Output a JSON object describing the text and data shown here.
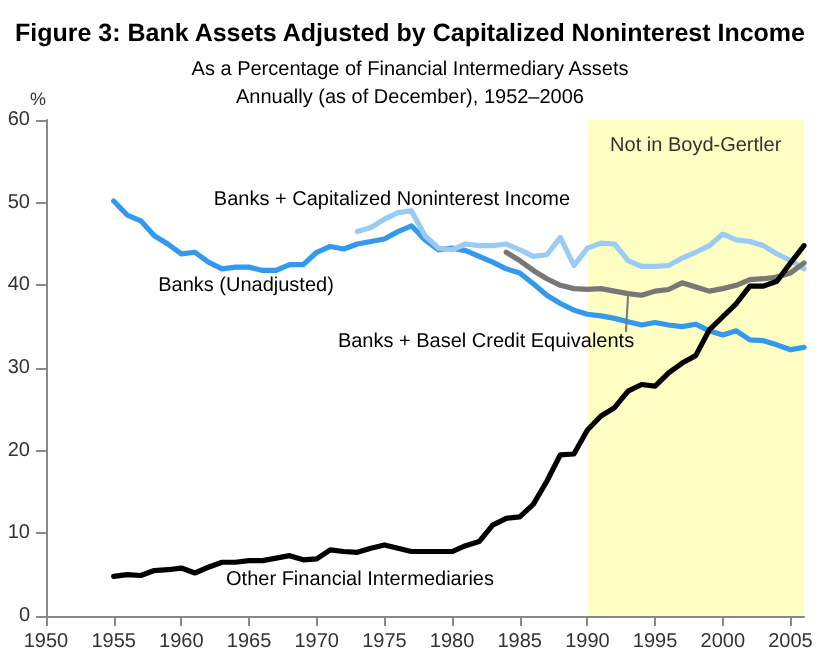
{
  "chart_data": {
    "type": "line",
    "title": "Figure 3: Bank Assets Adjusted by Capitalized Noninterest Income",
    "subtitle": "As a Percentage of Financial Intermediary Assets\nAnnually (as of December), 1952–2006",
    "ylabel": "%",
    "xlim": [
      1950,
      2006
    ],
    "xticks": [
      1950,
      1955,
      1960,
      1965,
      1970,
      1975,
      1980,
      1985,
      1990,
      1995,
      2000,
      2005
    ],
    "ylim": [
      0,
      60
    ],
    "yticks": [
      0,
      10,
      20,
      30,
      40,
      50,
      60
    ],
    "grid": false,
    "marker": "none",
    "line_style": "solid",
    "bands": [
      {
        "axis": "x",
        "from": 1990,
        "to": 2006,
        "label": "Not in Boyd-Gertler",
        "color": "#ffffc4"
      }
    ],
    "series": [
      {
        "name": "Banks (Unadjusted)",
        "color": "#3399ee",
        "x": [
          1955,
          1956,
          1957,
          1958,
          1959,
          1960,
          1961,
          1962,
          1963,
          1964,
          1965,
          1966,
          1967,
          1968,
          1969,
          1970,
          1971,
          1972,
          1973,
          1974,
          1975,
          1976,
          1977,
          1978,
          1979,
          1980,
          1981,
          1982,
          1983,
          1984,
          1985,
          1986,
          1987,
          1988,
          1989,
          1990,
          1991,
          1992,
          1993,
          1994,
          1995,
          1996,
          1997,
          1998,
          1999,
          2000,
          2001,
          2002,
          2003,
          2004,
          2005,
          2006
        ],
        "values": [
          50.2,
          48.5,
          47.8,
          46,
          45,
          43.8,
          44,
          42.8,
          42,
          42.2,
          42.2,
          41.8,
          41.8,
          42.5,
          42.5,
          44,
          44.7,
          44.4,
          45,
          45.3,
          45.6,
          46.5,
          47.2,
          45.5,
          44.3,
          44.5,
          44.2,
          43.5,
          42.8,
          42,
          41.5,
          40.2,
          38.8,
          37.8,
          37,
          36.5,
          36.3,
          36,
          35.6,
          35.2,
          35.5,
          35.2,
          35,
          35.3,
          34.5,
          34,
          34.5,
          33.4,
          33.3,
          32.8,
          32.2,
          32.5
        ]
      },
      {
        "name": "Banks + Capitalized Noninterest Income",
        "color": "#99ccf5",
        "x": [
          1973,
          1974,
          1975,
          1976,
          1977,
          1978,
          1979,
          1980,
          1981,
          1982,
          1983,
          1984,
          1985,
          1986,
          1987,
          1988,
          1989,
          1990,
          1991,
          1992,
          1993,
          1994,
          1995,
          1996,
          1997,
          1998,
          1999,
          2000,
          2001,
          2002,
          2003,
          2004,
          2005,
          2006
        ],
        "values": [
          46.5,
          47,
          48,
          48.8,
          49,
          46,
          44.5,
          44.3,
          45,
          44.8,
          44.8,
          45,
          44.3,
          43.5,
          43.7,
          45.8,
          42.4,
          44.5,
          45.1,
          45,
          43,
          42.3,
          42.3,
          42.4,
          43.3,
          44,
          44.8,
          46.2,
          45.5,
          45.3,
          44.8,
          43.8,
          43,
          42
        ]
      },
      {
        "name": "Banks + Basel Credit Equivalents",
        "color": "#777777",
        "x": [
          1984,
          1985,
          1986,
          1987,
          1988,
          1989,
          1990,
          1991,
          1992,
          1993,
          1994,
          1995,
          1996,
          1997,
          1998,
          1999,
          2000,
          2001,
          2002,
          2003,
          2004,
          2005,
          2006
        ],
        "values": [
          44,
          43,
          41.8,
          40.8,
          40,
          39.6,
          39.5,
          39.6,
          39.3,
          39,
          38.8,
          39.3,
          39.5,
          40.3,
          39.8,
          39.3,
          39.6,
          40,
          40.7,
          40.8,
          41,
          41.5,
          42.7
        ]
      },
      {
        "name": "Other Financial Intermediaries",
        "color": "#000000",
        "x": [
          1955,
          1956,
          1957,
          1958,
          1959,
          1960,
          1961,
          1962,
          1963,
          1964,
          1965,
          1966,
          1967,
          1968,
          1969,
          1970,
          1971,
          1972,
          1973,
          1974,
          1975,
          1976,
          1977,
          1978,
          1979,
          1980,
          1981,
          1982,
          1983,
          1984,
          1985,
          1986,
          1987,
          1988,
          1989,
          1990,
          1991,
          1992,
          1993,
          1994,
          1995,
          1996,
          1997,
          1998,
          1999,
          2000,
          2001,
          2002,
          2003,
          2004,
          2005,
          2006
        ],
        "values": [
          4.8,
          5,
          4.9,
          5.5,
          5.6,
          5.8,
          5.2,
          5.9,
          6.5,
          6.5,
          6.7,
          6.7,
          7,
          7.3,
          6.8,
          6.9,
          8,
          7.8,
          7.7,
          8.2,
          8.6,
          8.2,
          7.8,
          7.8,
          7.8,
          7.8,
          8.5,
          9,
          11,
          11.8,
          12,
          13.5,
          16.3,
          19.5,
          19.6,
          22.5,
          24.2,
          25.2,
          27.2,
          28,
          27.8,
          29.4,
          30.6,
          31.5,
          34.6,
          36.2,
          37.8,
          39.9,
          39.9,
          40.5,
          42.7,
          44.8
        ]
      }
    ]
  }
}
